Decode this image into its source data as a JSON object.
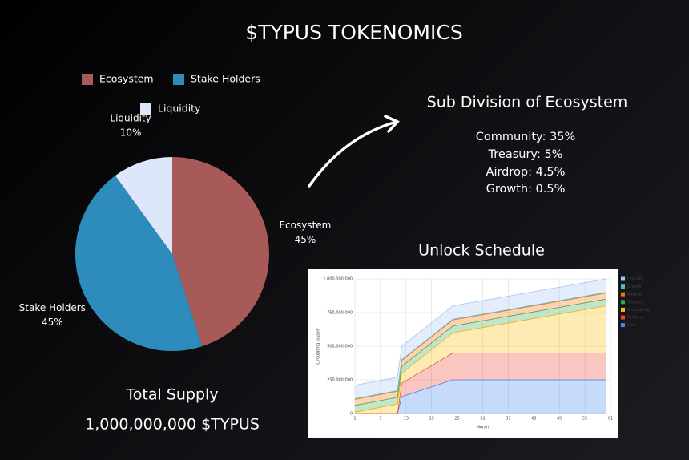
{
  "title": "$TYPUS TOKENOMICS",
  "subdivision": {
    "title": "Sub Division of Ecosystem",
    "items": [
      "Community: 35%",
      "Treasury: 5%",
      "Airdrop: 4.5%",
      "Growth: 0.5%"
    ]
  },
  "total_supply": {
    "label": "Total Supply",
    "value": "1,000,000,000 $TYPUS"
  },
  "chart_data": [
    {
      "type": "pie",
      "categories": [
        "Ecosystem",
        "Stake Holders",
        "Liquidity"
      ],
      "values": [
        45,
        45,
        10
      ],
      "value_labels": [
        "45%",
        "45%",
        "10%"
      ],
      "colors": [
        "#a85a58",
        "#2e8cbd",
        "#dde6fb"
      ],
      "legend": "top"
    },
    {
      "type": "stacked-area",
      "title": "Unlock Schedule",
      "x_label": "Month",
      "y_label": "Circulating Supply",
      "x": [
        1,
        11,
        12,
        24,
        60
      ],
      "xlim": [
        1,
        61
      ],
      "xticks": [
        1,
        7,
        13,
        19,
        25,
        31,
        37,
        43,
        49,
        55,
        61
      ],
      "ylim": [
        0,
        1000000000
      ],
      "yticks": [
        0,
        {
          "value": 250000000,
          "label": "250,000,000"
        },
        {
          "value": 500000000,
          "label": "500,000,000"
        },
        {
          "value": 750000000,
          "label": "750,000,000"
        },
        {
          "value": 1000000000,
          "label": "1,000,000,000"
        }
      ],
      "grid": true,
      "legend": "right",
      "series": [
        {
          "name": "Liquidity",
          "color": "#a4c2f4",
          "values": [
            100000000,
            100000000,
            100000000,
            100000000,
            100000000
          ]
        },
        {
          "name": "Growth",
          "color": "#46bdc6",
          "values": [
            5000000,
            5000000,
            5000000,
            5000000,
            5000000
          ]
        },
        {
          "name": "Airdrop",
          "color": "#ff6d01",
          "values": [
            45000000,
            45000000,
            45000000,
            45000000,
            45000000
          ]
        },
        {
          "name": "Treasury",
          "color": "#34a853",
          "values": [
            50000000,
            50000000,
            50000000,
            50000000,
            50000000
          ]
        },
        {
          "name": "Community",
          "color": "#fbbc04",
          "values": [
            10000000,
            70000000,
            75000000,
            150000000,
            350000000
          ]
        },
        {
          "name": "Partners",
          "color": "#ea4335",
          "values": [
            0,
            0,
            100000000,
            200000000,
            200000000
          ]
        },
        {
          "name": "Core",
          "color": "#4285f4",
          "values": [
            0,
            0,
            125000000,
            250000000,
            250000000
          ]
        }
      ]
    }
  ]
}
